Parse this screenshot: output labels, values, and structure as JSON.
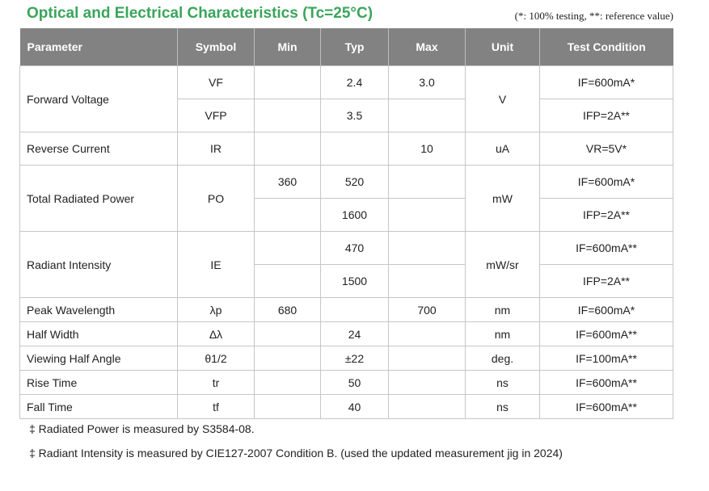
{
  "title": "Optical and Electrical Characteristics (Tc=25°C)",
  "note": "(*: 100% testing, **: reference value)",
  "headers": [
    "Parameter",
    "Symbol",
    "Min",
    "Typ",
    "Max",
    "Unit",
    "Test Condition"
  ],
  "forward_voltage": {
    "param": "Forward Voltage",
    "unit": "V",
    "r1": {
      "symbol": "VF",
      "min": "",
      "typ": "2.4",
      "max": "3.0",
      "cond": "IF=600mA*"
    },
    "r2": {
      "symbol": "VFP",
      "min": "",
      "typ": "3.5",
      "max": "",
      "cond": "IFP=2A**"
    }
  },
  "reverse_current": {
    "param": "Reverse Current",
    "symbol": "IR",
    "min": "",
    "typ": "",
    "max": "10",
    "unit": "uA",
    "cond": "VR=5V*"
  },
  "total_radiated_power": {
    "param": "Total Radiated Power",
    "symbol": "PO",
    "unit": "mW",
    "r1": {
      "min": "360",
      "typ": "520",
      "max": "",
      "cond": "IF=600mA*"
    },
    "r2": {
      "min": "",
      "typ": "1600",
      "max": "",
      "cond": "IFP=2A**"
    }
  },
  "radiant_intensity": {
    "param": "Radiant Intensity",
    "symbol": "IE",
    "unit": "mW/sr",
    "r1": {
      "min": "",
      "typ": "470",
      "max": "",
      "cond": "IF=600mA**"
    },
    "r2": {
      "min": "",
      "typ": "1500",
      "max": "",
      "cond": "IFP=2A**"
    }
  },
  "peak_wavelength": {
    "param": "Peak Wavelength",
    "symbol": "λp",
    "min": "680",
    "typ": "",
    "max": "700",
    "unit": "nm",
    "cond": "IF=600mA*"
  },
  "half_width": {
    "param": "Half Width",
    "symbol": "Δλ",
    "min": "",
    "typ": "24",
    "max": "",
    "unit": "nm",
    "cond": "IF=600mA**"
  },
  "viewing_half_angle": {
    "param": "Viewing Half Angle",
    "symbol": "θ1/2",
    "min": "",
    "typ": "±22",
    "max": "",
    "unit": "deg.",
    "cond": "IF=100mA**"
  },
  "rise_time": {
    "param": "Rise Time",
    "symbol": "tr",
    "min": "",
    "typ": "50",
    "max": "",
    "unit": "ns",
    "cond": "IF=600mA**"
  },
  "fall_time": {
    "param": "Fall Time",
    "symbol": "tf",
    "min": "",
    "typ": "40",
    "max": "",
    "unit": "ns",
    "cond": "IF=600mA**"
  },
  "footnotes": [
    "‡ Radiated Power is measured by S3584-08.",
    "‡ Radiant Intensity is measured by CIE127-2007 Condition B. (used the updated measurement jig in 2024)"
  ]
}
